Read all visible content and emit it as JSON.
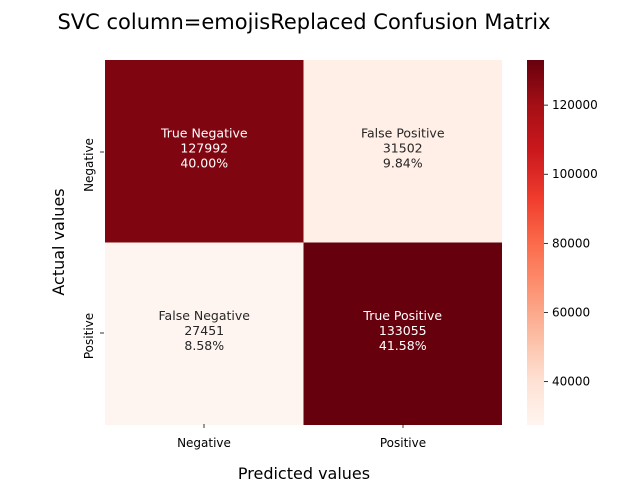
{
  "chart_data": {
    "type": "heatmap",
    "title": "SVC column=emojisReplaced Confusion Matrix",
    "xlabel": "Predicted values",
    "ylabel": "Actual values",
    "x_categories": [
      "Negative",
      "Positive"
    ],
    "y_categories": [
      "Negative",
      "Positive"
    ],
    "cells": [
      [
        {
          "label": "True Negative",
          "count": "127992",
          "percent": "40.00%",
          "value": 127992
        },
        {
          "label": "False Positive",
          "count": "31502",
          "percent": "9.84%",
          "value": 31502
        }
      ],
      [
        {
          "label": "False Negative",
          "count": "27451",
          "percent": "8.58%",
          "value": 27451
        },
        {
          "label": "True Positive",
          "count": "133055",
          "percent": "41.58%",
          "value": 133055
        }
      ]
    ],
    "colormap": "Reds",
    "colorbar": {
      "min": 27451,
      "max": 133055,
      "ticks": [
        "40000",
        "60000",
        "80000",
        "100000",
        "120000"
      ],
      "tick_values": [
        40000,
        60000,
        80000,
        100000,
        120000
      ]
    }
  }
}
